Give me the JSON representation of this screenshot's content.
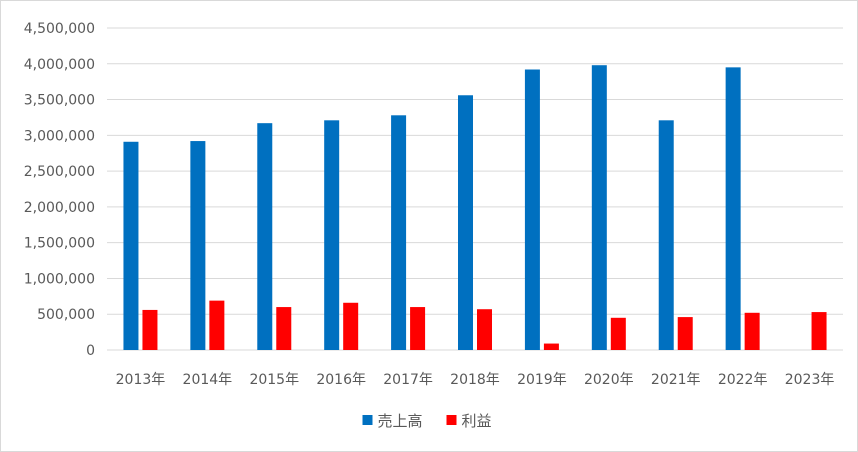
{
  "chart_data": {
    "type": "bar",
    "categories": [
      "2013年",
      "2014年",
      "2015年",
      "2016年",
      "2017年",
      "2018年",
      "2019年",
      "2020年",
      "2021年",
      "2022年",
      "2023年"
    ],
    "series": [
      {
        "name": "売上高",
        "color": "#0070C0",
        "values": [
          2910000,
          2920000,
          3170000,
          3210000,
          3280000,
          3560000,
          3920000,
          3980000,
          3210000,
          3950000,
          null
        ]
      },
      {
        "name": "利益",
        "color": "#FF0000",
        "values": [
          560000,
          690000,
          600000,
          660000,
          600000,
          570000,
          90000,
          450000,
          460000,
          520000,
          530000
        ]
      }
    ],
    "ylim": [
      0,
      4500000
    ],
    "yticks": [
      "0",
      "500,000",
      "1,000,000",
      "1,500,000",
      "2,000,000",
      "2,500,000",
      "3,000,000",
      "3,500,000",
      "4,000,000",
      "4,500,000"
    ],
    "ytick_values": [
      0,
      500000,
      1000000,
      1500000,
      2000000,
      2500000,
      3000000,
      3500000,
      4000000,
      4500000
    ],
    "grid": true,
    "legend": "bottom",
    "title": "",
    "xlabel": "",
    "ylabel": ""
  }
}
